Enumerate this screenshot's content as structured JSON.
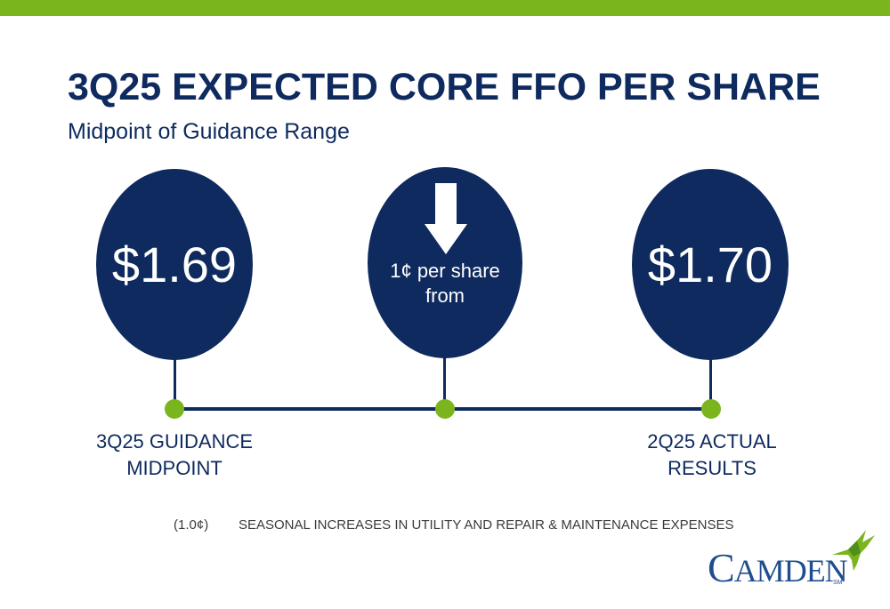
{
  "colors": {
    "navy": "#0e2a5e",
    "green": "#7ab51d",
    "logo_blue": "#1f4d8f"
  },
  "title": "3Q25 EXPECTED CORE FFO PER SHARE",
  "subtitle": "Midpoint of Guidance Range",
  "steps": [
    {
      "value": "$1.69",
      "label_line1": "3Q25 GUIDANCE",
      "label_line2": "MIDPOINT"
    },
    {
      "icon": "down-arrow-icon",
      "text_line1": "1¢ per share",
      "text_line2": "from"
    },
    {
      "value": "$1.70",
      "label_line1": "2Q25 ACTUAL",
      "label_line2": "RESULTS"
    }
  ],
  "footnote": {
    "amount": "(1.0¢)",
    "description": "SEASONAL INCREASES IN UTILITY AND REPAIR & MAINTENANCE EXPENSES"
  },
  "logo": {
    "text_cap1": "C",
    "text_rest": "AMDEN",
    "trademark": "SM",
    "icon": "hummingbird-icon"
  }
}
